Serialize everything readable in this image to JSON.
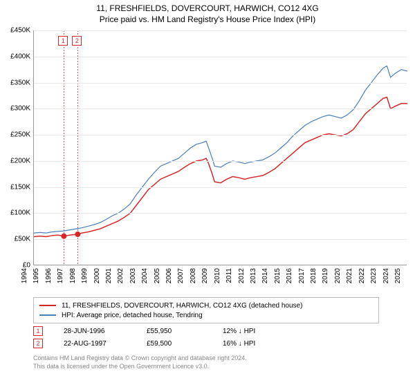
{
  "title": {
    "line1": "11, FRESHFIELDS, DOVERCOURT, HARWICH, CO12 4XG",
    "line2": "Price paid vs. HM Land Registry's House Price Index (HPI)"
  },
  "chart": {
    "type": "line",
    "background_color": "#ffffff",
    "grid_color": "#e8e8e8",
    "axis_color": "#999999",
    "tick_fontsize": 10,
    "x": {
      "min": 1994,
      "max": 2025,
      "step": 1
    },
    "y": {
      "min": 0,
      "max": 450000,
      "step": 50000,
      "prefix": "£",
      "suffix": "K",
      "divisor": 1000
    },
    "series": [
      {
        "id": "price_paid",
        "label": "11, FRESHFIELDS, DOVERCOURT, HARWICH, CO12 4XG (detached house)",
        "color": "#d62728",
        "line_width": 1.5,
        "data": [
          [
            1994.0,
            55000
          ],
          [
            1994.5,
            56000
          ],
          [
            1995.0,
            55000
          ],
          [
            1995.5,
            57000
          ],
          [
            1996.0,
            58000
          ],
          [
            1996.49,
            55950
          ],
          [
            1997.0,
            58000
          ],
          [
            1997.64,
            59500
          ],
          [
            1998.0,
            62000
          ],
          [
            1998.5,
            64000
          ],
          [
            1999.0,
            67000
          ],
          [
            1999.5,
            70000
          ],
          [
            2000.0,
            75000
          ],
          [
            2000.5,
            80000
          ],
          [
            2001.0,
            85000
          ],
          [
            2001.5,
            92000
          ],
          [
            2002.0,
            100000
          ],
          [
            2002.5,
            115000
          ],
          [
            2003.0,
            130000
          ],
          [
            2003.5,
            145000
          ],
          [
            2004.0,
            155000
          ],
          [
            2004.5,
            165000
          ],
          [
            2005.0,
            170000
          ],
          [
            2005.5,
            175000
          ],
          [
            2006.0,
            180000
          ],
          [
            2006.5,
            188000
          ],
          [
            2007.0,
            195000
          ],
          [
            2007.5,
            200000
          ],
          [
            2008.0,
            202000
          ],
          [
            2008.3,
            205000
          ],
          [
            2008.5,
            195000
          ],
          [
            2008.8,
            175000
          ],
          [
            2009.0,
            160000
          ],
          [
            2009.5,
            158000
          ],
          [
            2010.0,
            165000
          ],
          [
            2010.5,
            170000
          ],
          [
            2011.0,
            168000
          ],
          [
            2011.5,
            165000
          ],
          [
            2012.0,
            168000
          ],
          [
            2012.5,
            170000
          ],
          [
            2013.0,
            172000
          ],
          [
            2013.5,
            178000
          ],
          [
            2014.0,
            185000
          ],
          [
            2014.5,
            195000
          ],
          [
            2015.0,
            205000
          ],
          [
            2015.5,
            215000
          ],
          [
            2016.0,
            225000
          ],
          [
            2016.5,
            235000
          ],
          [
            2017.0,
            240000
          ],
          [
            2017.5,
            245000
          ],
          [
            2018.0,
            250000
          ],
          [
            2018.5,
            252000
          ],
          [
            2019.0,
            250000
          ],
          [
            2019.5,
            248000
          ],
          [
            2020.0,
            252000
          ],
          [
            2020.5,
            260000
          ],
          [
            2021.0,
            275000
          ],
          [
            2021.5,
            290000
          ],
          [
            2022.0,
            300000
          ],
          [
            2022.5,
            310000
          ],
          [
            2023.0,
            320000
          ],
          [
            2023.3,
            322000
          ],
          [
            2023.6,
            300000
          ],
          [
            2024.0,
            305000
          ],
          [
            2024.5,
            310000
          ],
          [
            2025.0,
            310000
          ]
        ]
      },
      {
        "id": "hpi",
        "label": "HPI: Average price, detached house, Tendring",
        "color": "#4a7ebb",
        "line_width": 1.2,
        "data": [
          [
            1994.0,
            62000
          ],
          [
            1994.5,
            63000
          ],
          [
            1995.0,
            62000
          ],
          [
            1995.5,
            64000
          ],
          [
            1996.0,
            65000
          ],
          [
            1996.5,
            66000
          ],
          [
            1997.0,
            68000
          ],
          [
            1997.5,
            70000
          ],
          [
            1998.0,
            72000
          ],
          [
            1998.5,
            75000
          ],
          [
            1999.0,
            78000
          ],
          [
            1999.5,
            82000
          ],
          [
            2000.0,
            88000
          ],
          [
            2000.5,
            95000
          ],
          [
            2001.0,
            100000
          ],
          [
            2001.5,
            108000
          ],
          [
            2002.0,
            118000
          ],
          [
            2002.5,
            135000
          ],
          [
            2003.0,
            150000
          ],
          [
            2003.5,
            165000
          ],
          [
            2004.0,
            178000
          ],
          [
            2004.5,
            190000
          ],
          [
            2005.0,
            195000
          ],
          [
            2005.5,
            200000
          ],
          [
            2006.0,
            205000
          ],
          [
            2006.5,
            215000
          ],
          [
            2007.0,
            225000
          ],
          [
            2007.5,
            232000
          ],
          [
            2008.0,
            235000
          ],
          [
            2008.3,
            238000
          ],
          [
            2008.5,
            225000
          ],
          [
            2008.8,
            205000
          ],
          [
            2009.0,
            190000
          ],
          [
            2009.5,
            188000
          ],
          [
            2010.0,
            195000
          ],
          [
            2010.5,
            200000
          ],
          [
            2011.0,
            198000
          ],
          [
            2011.5,
            195000
          ],
          [
            2012.0,
            198000
          ],
          [
            2012.5,
            200000
          ],
          [
            2013.0,
            202000
          ],
          [
            2013.5,
            208000
          ],
          [
            2014.0,
            215000
          ],
          [
            2014.5,
            225000
          ],
          [
            2015.0,
            235000
          ],
          [
            2015.5,
            248000
          ],
          [
            2016.0,
            258000
          ],
          [
            2016.5,
            268000
          ],
          [
            2017.0,
            275000
          ],
          [
            2017.5,
            280000
          ],
          [
            2018.0,
            285000
          ],
          [
            2018.5,
            288000
          ],
          [
            2019.0,
            285000
          ],
          [
            2019.5,
            282000
          ],
          [
            2020.0,
            288000
          ],
          [
            2020.5,
            298000
          ],
          [
            2021.0,
            315000
          ],
          [
            2021.5,
            335000
          ],
          [
            2022.0,
            350000
          ],
          [
            2022.5,
            365000
          ],
          [
            2023.0,
            378000
          ],
          [
            2023.3,
            382000
          ],
          [
            2023.6,
            360000
          ],
          [
            2024.0,
            368000
          ],
          [
            2024.5,
            375000
          ],
          [
            2025.0,
            372000
          ]
        ]
      }
    ],
    "event_markers": [
      {
        "idx": "1",
        "x": 1996.49,
        "y": 55950,
        "color": "#d62728"
      },
      {
        "idx": "2",
        "x": 1997.64,
        "y": 59500,
        "color": "#d62728"
      }
    ]
  },
  "legend": {
    "border_color": "#bbbbbb",
    "fontsize": 10
  },
  "events": [
    {
      "idx": "1",
      "date": "28-JUN-1996",
      "price": "£55,950",
      "diff": "12% ↓ HPI",
      "color": "#d62728"
    },
    {
      "idx": "2",
      "date": "22-AUG-1997",
      "price": "£59,500",
      "diff": "16% ↓ HPI",
      "color": "#d62728"
    }
  ],
  "footer": {
    "line1": "Contains HM Land Registry data © Crown copyright and database right 2024.",
    "line2": "This data is licensed under the Open Government Licence v3.0."
  }
}
